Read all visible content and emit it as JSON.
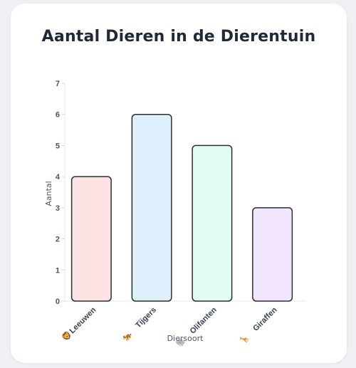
{
  "chart_data": {
    "type": "bar",
    "title": "Aantal Dieren in de Dierentuin",
    "xlabel": "Diersoort",
    "ylabel": "Aantal",
    "ylim": [
      0,
      7
    ],
    "yticks": [
      0,
      1,
      2,
      3,
      4,
      5,
      6,
      7
    ],
    "categories": [
      "Leeuwen",
      "Tijgers",
      "Olifanten",
      "Giraffen"
    ],
    "category_icons": [
      "lion-icon",
      "tiger-icon",
      "elephant-icon",
      "giraffe-icon"
    ],
    "category_emoji": [
      "🦁",
      "🐅",
      "🐘",
      "🦒"
    ],
    "values": [
      4,
      6,
      5,
      3
    ],
    "colors": [
      "#fde2e4",
      "#dff0fd",
      "#e3fbf5",
      "#f1e6fd"
    ],
    "bar_stroke": "#2d2d2d",
    "grid": false
  }
}
